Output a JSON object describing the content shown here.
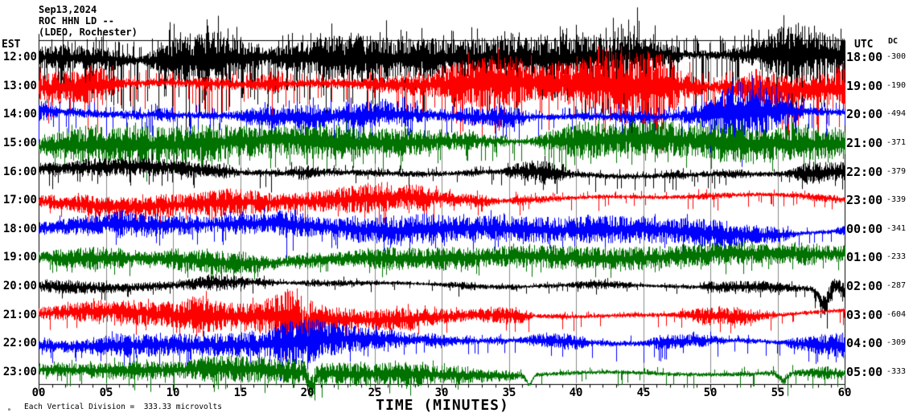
{
  "header": {
    "date": "Sep13,2024",
    "station": "ROC HHN LD --",
    "location": "(LDEO, Rochester)"
  },
  "axes": {
    "left_timezone_label": "EST",
    "right_timezone_label": "UTC",
    "dc_column_label": "DC",
    "x_axis_title": "TIME (MINUTES)",
    "x_tick_labels": [
      "00",
      "05",
      "10",
      "15",
      "20",
      "25",
      "30",
      "35",
      "40",
      "45",
      "50",
      "55",
      "60"
    ],
    "footnote_marker": "ₘ",
    "footnote": "Each Vertical Division =  333.33 microvolts"
  },
  "chart_data": {
    "type": "line",
    "kind": "helicorder-seismogram",
    "title": "ROC HHN LD -- (LDEO, Rochester) Sep13,2024",
    "xlabel": "TIME (MINUTES)",
    "x_range_minutes": [
      0,
      60
    ],
    "x_major_tick_minutes": 5,
    "x_minor_tick_minutes": 1,
    "microvolts_per_vertical_division": 333.33,
    "grid": "vertical-5min-lines",
    "colors": {
      "black": "#000000",
      "red": "#ff0000",
      "blue": "#0000ff",
      "green": "#007200",
      "grid": "#8a8a8a",
      "background": "#ffffff"
    },
    "rows": [
      {
        "est": "12:00",
        "utc": "18:00",
        "dc": "-300",
        "color": "black",
        "band_uv": 80,
        "spike_uv": 420,
        "spike_p": 0.32,
        "drift_uv": 25,
        "bursts": [
          [
            10.5,
            3,
            1.5
          ],
          [
            27,
            2,
            1.4
          ],
          [
            45,
            4,
            1.7
          ],
          [
            56,
            2,
            1.4
          ]
        ],
        "dips": []
      },
      {
        "est": "13:00",
        "utc": "19:00",
        "dc": "-190",
        "color": "red",
        "band_uv": 95,
        "spike_uv": 300,
        "spike_p": 0.25,
        "drift_uv": 30,
        "bursts": [
          [
            5,
            2,
            1.3
          ],
          [
            45.5,
            3,
            1.7
          ],
          [
            57,
            2,
            1.5
          ]
        ],
        "dips": []
      },
      {
        "est": "14:00",
        "utc": "20:00",
        "dc": "-494",
        "color": "blue",
        "band_uv": 80,
        "spike_uv": 240,
        "spike_p": 0.2,
        "drift_uv": 30,
        "bursts": [
          [
            3,
            2,
            1.3
          ],
          [
            53,
            3,
            1.5
          ]
        ],
        "dips": []
      },
      {
        "est": "15:00",
        "utc": "21:00",
        "dc": "-371",
        "color": "green",
        "band_uv": 70,
        "spike_uv": 180,
        "spike_p": 0.16,
        "drift_uv": 30,
        "bursts": [
          [
            25,
            3,
            1.3
          ]
        ],
        "dips": []
      },
      {
        "est": "16:00",
        "utc": "22:00",
        "dc": "-379",
        "color": "black",
        "band_uv": 60,
        "spike_uv": 150,
        "spike_p": 0.14,
        "drift_uv": 35,
        "bursts": [
          [
            20,
            3,
            1.3
          ],
          [
            40,
            3,
            1.2
          ]
        ],
        "dips": []
      },
      {
        "est": "17:00",
        "utc": "23:00",
        "dc": "-339",
        "color": "red",
        "band_uv": 50,
        "spike_uv": 130,
        "spike_p": 0.12,
        "drift_uv": 40,
        "bursts": [
          [
            27,
            2,
            1.4
          ]
        ],
        "dips": []
      },
      {
        "est": "18:00",
        "utc": "00:00",
        "dc": "-341",
        "color": "blue",
        "band_uv": 50,
        "spike_uv": 140,
        "spike_p": 0.13,
        "drift_uv": 40,
        "bursts": [
          [
            17,
            4,
            1.5
          ],
          [
            30,
            3,
            1.3
          ]
        ],
        "dips": []
      },
      {
        "est": "19:00",
        "utc": "01:00",
        "dc": "-233",
        "color": "green",
        "band_uv": 42,
        "spike_uv": 100,
        "spike_p": 0.11,
        "drift_uv": 35,
        "bursts": [],
        "dips": []
      },
      {
        "est": "20:00",
        "utc": "02:00",
        "dc": "-287",
        "color": "black",
        "band_uv": 38,
        "spike_uv": 80,
        "spike_p": 0.1,
        "drift_uv": 30,
        "bursts": [
          [
            58.6,
            1,
            2.5
          ]
        ],
        "dips": [
          [
            58.4,
            0.5,
            180
          ],
          [
            59.3,
            0.3,
            -60
          ]
        ]
      },
      {
        "est": "21:00",
        "utc": "03:00",
        "dc": "-604",
        "color": "red",
        "band_uv": 50,
        "spike_uv": 140,
        "spike_p": 0.12,
        "drift_uv": 35,
        "bursts": [
          [
            12,
            1,
            1.5
          ],
          [
            18.8,
            1.5,
            2.2
          ]
        ],
        "dips": [
          [
            19.8,
            0.3,
            150
          ]
        ]
      },
      {
        "est": "22:00",
        "utc": "04:00",
        "dc": "-309",
        "color": "blue",
        "band_uv": 50,
        "spike_uv": 140,
        "spike_p": 0.12,
        "drift_uv": 35,
        "bursts": [
          [
            19.5,
            2,
            1.7
          ],
          [
            45,
            3,
            1.3
          ]
        ],
        "dips": []
      },
      {
        "est": "23:00",
        "utc": "05:00",
        "dc": "-333",
        "color": "green",
        "band_uv": 48,
        "spike_uv": 130,
        "spike_p": 0.12,
        "drift_uv": 30,
        "bursts": [
          [
            55.6,
            1,
            1.8
          ]
        ],
        "dips": [
          [
            20.3,
            0.3,
            160
          ],
          [
            36.5,
            0.3,
            110
          ],
          [
            55.4,
            0.4,
            90
          ]
        ]
      }
    ]
  }
}
